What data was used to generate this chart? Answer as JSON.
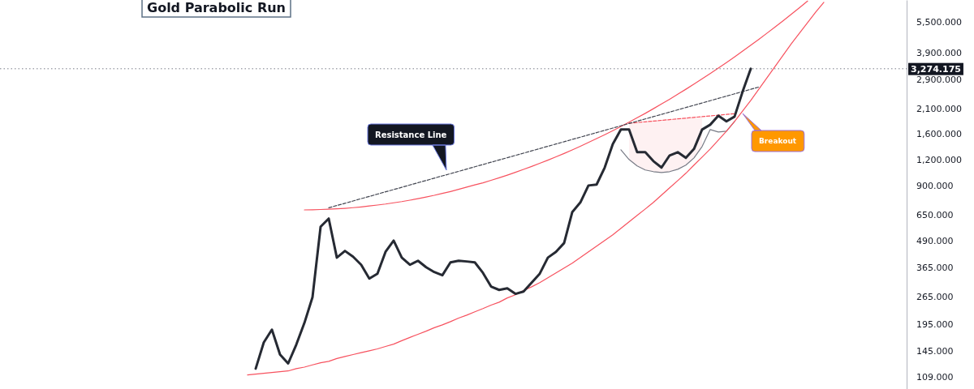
{
  "chart_data": {
    "type": "line",
    "title": "Gold Parabolic Run",
    "log": true,
    "ylim": [
      95,
      7000
    ],
    "yticks": [
      {
        "value": 109,
        "label": "109.000"
      },
      {
        "value": 145,
        "label": "145.000"
      },
      {
        "value": 195,
        "label": "195.000"
      },
      {
        "value": 265,
        "label": "265.000"
      },
      {
        "value": 365,
        "label": "365.000"
      },
      {
        "value": 490,
        "label": "490.000"
      },
      {
        "value": 650,
        "label": "650.000"
      },
      {
        "value": 900,
        "label": "900.000"
      },
      {
        "value": 1200,
        "label": "1,200.000"
      },
      {
        "value": 1600,
        "label": "1,600.000"
      },
      {
        "value": 2100,
        "label": "2,100.000"
      },
      {
        "value": 2900,
        "label": "2,900.000"
      },
      {
        "value": 3900,
        "label": "3,900.000"
      },
      {
        "value": 5500,
        "label": "5,500.000"
      }
    ],
    "tick_labels": "y",
    "categories": [
      null,
      null,
      null,
      null,
      null,
      null,
      null,
      null,
      null,
      null,
      null,
      null,
      null,
      null,
      null,
      null,
      null,
      null,
      null,
      null,
      null,
      null,
      null,
      null,
      null,
      null,
      null,
      null,
      null,
      null,
      null,
      null,
      null,
      null,
      null,
      null,
      null,
      null,
      null,
      null,
      null,
      null,
      null,
      null,
      null,
      null,
      null,
      null,
      null,
      null,
      null,
      null,
      null,
      null,
      null,
      null,
      null,
      null,
      null,
      null,
      null,
      null,
      null,
      null,
      null,
      null,
      null,
      null,
      null,
      null,
      null,
      null,
      null,
      null,
      null,
      null,
      null,
      null,
      null,
      null,
      null,
      null,
      null,
      null,
      null,
      null,
      null,
      null,
      null,
      null,
      null,
      null,
      null,
      null,
      null,
      null,
      null,
      null,
      null,
      null,
      null,
      null,
      null,
      null,
      null,
      null,
      null,
      null,
      null,
      null,
      null
    ],
    "series": [
      {
        "type": "area",
        "color": "#f7525f",
        "line_style": "solid",
        "values": [
          null,
          null,
          null,
          null,
          null,
          null,
          null,
          null,
          null,
          null,
          null,
          null,
          null,
          null,
          null,
          null,
          null,
          null,
          null,
          null,
          null,
          null,
          null,
          null,
          null,
          null,
          null,
          null,
          null,
          null,
          null,
          null,
          null,
          null,
          null,
          null,
          null,
          null,
          null,
          null,
          null,
          null,
          null,
          null,
          null,
          null,
          null,
          null,
          null,
          null,
          null,
          null,
          null,
          null,
          null,
          null,
          null,
          null,
          null,
          null,
          null,
          null,
          null,
          null,
          null,
          null,
          null,
          null,
          null,
          null,
          null,
          null,
          null,
          null,
          null,
          null,
          null,
          null,
          null,
          null,
          null,
          null,
          null,
          null,
          null,
          null,
          null,
          null,
          null,
          null,
          null,
          null,
          null,
          null,
          null,
          null,
          null,
          null,
          null,
          null,
          null,
          null,
          null,
          null,
          null,
          null,
          null,
          null,
          null,
          null,
          null
        ],
        "lower": [
          null,
          null,
          null,
          null,
          null,
          null,
          null,
          null,
          null,
          null,
          null,
          null,
          null,
          null,
          null,
          null,
          null,
          null,
          null,
          null,
          null,
          null,
          null,
          null,
          null,
          null,
          null,
          null,
          null,
          null,
          null,
          null,
          null,
          null,
          null,
          null,
          null,
          null,
          null,
          null,
          null,
          null,
          null,
          null,
          null,
          null,
          null,
          null,
          null,
          null,
          null,
          null,
          null,
          null,
          null,
          null,
          null,
          null,
          null,
          null,
          null,
          null,
          null,
          null,
          null,
          null,
          null,
          null,
          null,
          null,
          null,
          null,
          null,
          null,
          null,
          null,
          null,
          1201,
          1118,
          1069,
          1050,
          1040,
          1050,
          1078,
          1128,
          1222,
          1386,
          null,
          null,
          null,
          null,
          null,
          null,
          null,
          null,
          null,
          null,
          null,
          null,
          null,
          null,
          null,
          null,
          null,
          null,
          null,
          null,
          null,
          null,
          null,
          null
        ],
        "upper": [
          null,
          null,
          null,
          null,
          null,
          null,
          null,
          null,
          null,
          null,
          null,
          null,
          null,
          null,
          null,
          null,
          null,
          null,
          null,
          null,
          null,
          null,
          null,
          null,
          null,
          null,
          null,
          null,
          null,
          null,
          null,
          null,
          null,
          null,
          null,
          null,
          null,
          null,
          null,
          null,
          null,
          null,
          null,
          null,
          null,
          null,
          null,
          null,
          null,
          null,
          null,
          null,
          null,
          null,
          null,
          null,
          null,
          null,
          null,
          null,
          null,
          null,
          null,
          null,
          null,
          null,
          null,
          null,
          null,
          null,
          null,
          null,
          null,
          null,
          null,
          null,
          null,
          1792,
          1807,
          1821,
          1836,
          1851,
          1866,
          1882,
          1897,
          1913,
          1928,
          null,
          null,
          null,
          null,
          null,
          null,
          null,
          null,
          null,
          null,
          null,
          null,
          null,
          null,
          null,
          null,
          null,
          null,
          null,
          null,
          null,
          null,
          null,
          null
        ]
      },
      {
        "type": "line",
        "color": "#f7525f",
        "line_style": "dashed",
        "values": [
          null,
          null,
          null,
          null,
          null,
          null,
          null,
          null,
          null,
          null,
          null,
          null,
          null,
          null,
          null,
          null,
          null,
          null,
          null,
          null,
          null,
          null,
          null,
          null,
          null,
          null,
          null,
          null,
          null,
          null,
          null,
          null,
          null,
          null,
          null,
          null,
          null,
          null,
          null,
          null,
          null,
          null,
          null,
          null,
          null,
          null,
          null,
          null,
          null,
          null,
          null,
          null,
          null,
          null,
          null,
          null,
          null,
          null,
          null,
          null,
          null,
          null,
          null,
          null,
          null,
          null,
          null,
          null,
          null,
          null,
          null,
          null,
          null,
          null,
          null,
          null,
          null,
          1792,
          1807,
          1821,
          1836,
          1851,
          1866,
          1882,
          1897,
          1913,
          1928,
          1944,
          1960,
          1976,
          1992,
          null,
          null,
          null,
          null,
          null,
          null,
          null,
          null,
          null,
          null,
          null,
          null,
          null,
          null,
          null,
          null,
          null,
          null,
          null,
          null
        ]
      },
      {
        "type": "line",
        "color": "#787b86",
        "line_style": "solid",
        "values": [
          null,
          null,
          null,
          null,
          null,
          null,
          null,
          null,
          null,
          null,
          null,
          null,
          null,
          null,
          null,
          null,
          null,
          null,
          null,
          null,
          null,
          null,
          null,
          null,
          null,
          null,
          null,
          null,
          null,
          null,
          null,
          null,
          null,
          null,
          null,
          null,
          null,
          null,
          null,
          null,
          null,
          null,
          null,
          null,
          null,
          null,
          null,
          null,
          null,
          null,
          null,
          null,
          null,
          null,
          null,
          null,
          null,
          null,
          null,
          null,
          null,
          null,
          null,
          null,
          null,
          null,
          null,
          null,
          null,
          null,
          null,
          null,
          null,
          null,
          null,
          null,
          1337,
          1201,
          1118,
          1069,
          1050,
          1040,
          1050,
          1078,
          1128,
          1222,
          1386,
          1672,
          1627,
          1643,
          1829,
          null,
          null,
          null,
          null,
          null,
          null,
          null,
          null,
          null,
          null,
          null,
          null,
          null,
          null,
          null,
          null,
          null,
          null,
          null,
          null
        ]
      },
      {
        "type": "line",
        "color": "#f7525f",
        "line_style": "solid",
        "values": [
          null,
          null,
          null,
          null,
          null,
          null,
          null,
          null,
          null,
          null,
          null,
          null,
          null,
          null,
          null,
          null,
          null,
          null,
          null,
          null,
          null,
          null,
          null,
          null,
          null,
          null,
          null,
          null,
          null,
          null,
          null,
          null,
          null,
          null,
          null,
          null,
          null,
          688,
          689,
          691,
          693,
          696,
          700,
          705,
          711,
          718,
          726,
          734,
          744,
          754,
          766,
          779,
          793,
          808,
          825,
          843,
          863,
          885,
          907,
          928,
          954,
          981,
          1010,
          1042,
          1076,
          1112,
          1151,
          1192,
          1237,
          1284,
          1335,
          1390,
          1449,
          1512,
          1579,
          1652,
          1730,
          1813,
          1904,
          2000,
          2105,
          2217,
          2338,
          2469,
          2610,
          2762,
          2927,
          3105,
          3298,
          3507,
          3734,
          3980,
          4247,
          4537,
          4853,
          5198,
          5573,
          5983,
          6430,
          6920,
          null,
          null,
          null,
          null,
          null,
          null,
          null,
          null,
          null,
          null,
          null
        ]
      },
      {
        "type": "line",
        "color": "#f7525f",
        "line_style": "solid",
        "values": [
          null,
          null,
          null,
          null,
          null,
          null,
          null,
          null,
          null,
          null,
          null,
          null,
          null,
          null,
          null,
          null,
          null,
          null,
          null,
          null,
          null,
          null,
          null,
          null,
          null,
          null,
          null,
          null,
          null,
          null,
          111,
          112,
          113,
          114,
          115,
          116,
          119,
          121,
          124,
          127,
          129,
          133,
          136,
          139,
          142,
          145,
          148,
          152,
          156,
          162,
          168,
          174,
          180,
          187,
          193,
          200,
          208,
          215,
          223,
          231,
          240,
          248,
          260,
          269,
          282,
          294,
          308,
          325,
          343,
          362,
          382,
          406,
          433,
          461,
          491,
          522,
          561,
          603,
          647,
          695,
          747,
          810,
          878,
          951,
          1031,
          1128,
          1233,
          1349,
          1489,
          1643,
          1829,
          2054,
          2308,
          2617,
          2966,
          3362,
          3811,
          4320,
          4853,
          5452,
          6124,
          6819,
          null,
          null,
          null,
          null,
          null,
          null,
          null,
          null,
          null
        ]
      },
      {
        "type": "line",
        "color": "#434651",
        "line_style": "dashed",
        "values": [
          null,
          null,
          null,
          null,
          null,
          null,
          null,
          null,
          null,
          null,
          null,
          null,
          null,
          null,
          null,
          null,
          null,
          null,
          null,
          null,
          null,
          null,
          null,
          null,
          null,
          null,
          null,
          null,
          null,
          null,
          null,
          null,
          null,
          null,
          null,
          null,
          null,
          null,
          null,
          null,
          704,
          722,
          740,
          759,
          779,
          798,
          819,
          840,
          861,
          883,
          906,
          929,
          952,
          977,
          1002,
          1027,
          1053,
          1080,
          1108,
          1136,
          1165,
          1195,
          1225,
          1256,
          1288,
          1321,
          1355,
          1390,
          1425,
          1461,
          1499,
          1537,
          1576,
          1616,
          1658,
          1700,
          1743,
          1788,
          1834,
          1880,
          1928,
          1977,
          2028,
          2080,
          2133,
          2187,
          2243,
          2300,
          2359,
          2419,
          2481,
          2544,
          2609,
          2675,
          null,
          null,
          null,
          null,
          null,
          null,
          null,
          null,
          null,
          null,
          null,
          null,
          null,
          null,
          null,
          null,
          null
        ]
      },
      {
        "type": "line",
        "color": "#262a33",
        "line_style": "solid",
        "values": [
          null,
          null,
          null,
          null,
          null,
          null,
          null,
          null,
          null,
          null,
          null,
          null,
          null,
          null,
          null,
          null,
          null,
          null,
          null,
          null,
          null,
          null,
          null,
          null,
          null,
          null,
          null,
          null,
          null,
          null,
          null,
          119,
          159,
          183,
          139,
          126,
          155,
          197,
          262,
          571,
          625,
          406,
          437,
          410,
          375,
          322,
          340,
          433,
          490,
          406,
          375,
          392,
          365,
          346,
          334,
          385,
          392,
          389,
          385,
          343,
          295,
          284,
          289,
          272,
          279,
          308,
          340,
          406,
          433,
          477,
          671,
          747,
          901,
          910,
          1098,
          1423,
          1672,
          1672,
          1302,
          1302,
          1179,
          1098,
          1256,
          1302,
          1222,
          1349,
          1672,
          1764,
          1947,
          1829,
          1929,
          2547,
          3274.175,
          null,
          null,
          null,
          null,
          null,
          null,
          null,
          null,
          null,
          null,
          null,
          null,
          null,
          null,
          null,
          null,
          null,
          null
        ]
      }
    ],
    "ref_lines": [
      {
        "axis": "y",
        "value": 3274.175,
        "label": "3,274.175",
        "color": "#787b86",
        "line_style": "dotted"
      }
    ],
    "annotations": [
      "Resistance Line",
      "Breakout"
    ]
  }
}
